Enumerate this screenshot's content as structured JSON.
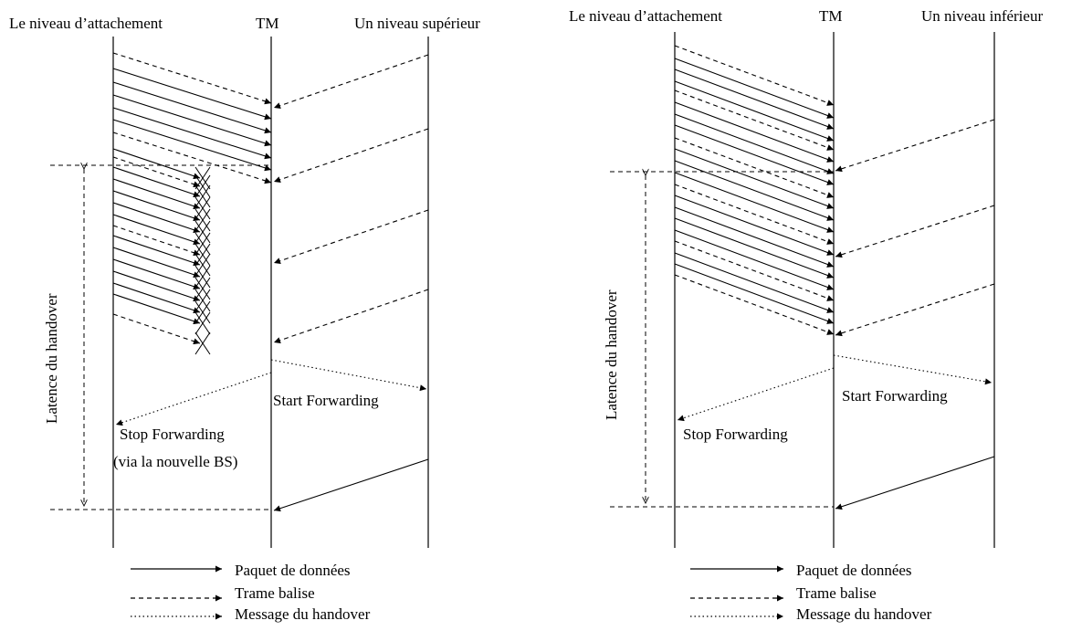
{
  "left": {
    "col_attach": "Le niveau d’attachement",
    "col_tm": "TM",
    "col_other": "Un niveau supérieur",
    "latency": "Latence du handover",
    "start_forwarding": "Start Forwarding",
    "stop_forwarding": "Stop Forwarding",
    "stop_forwarding_note": "(via la nouvelle BS)"
  },
  "right": {
    "col_attach": "Le niveau d’attachement",
    "col_tm": "TM",
    "col_other": "Un niveau inférieur",
    "latency": "Latence du handover",
    "start_forwarding": "Start Forwarding",
    "stop_forwarding": "Stop Forwarding"
  },
  "legend": {
    "data_packet": "Paquet de données",
    "beacon_frame": "Trame balise",
    "handover_message": "Message du handover"
  }
}
